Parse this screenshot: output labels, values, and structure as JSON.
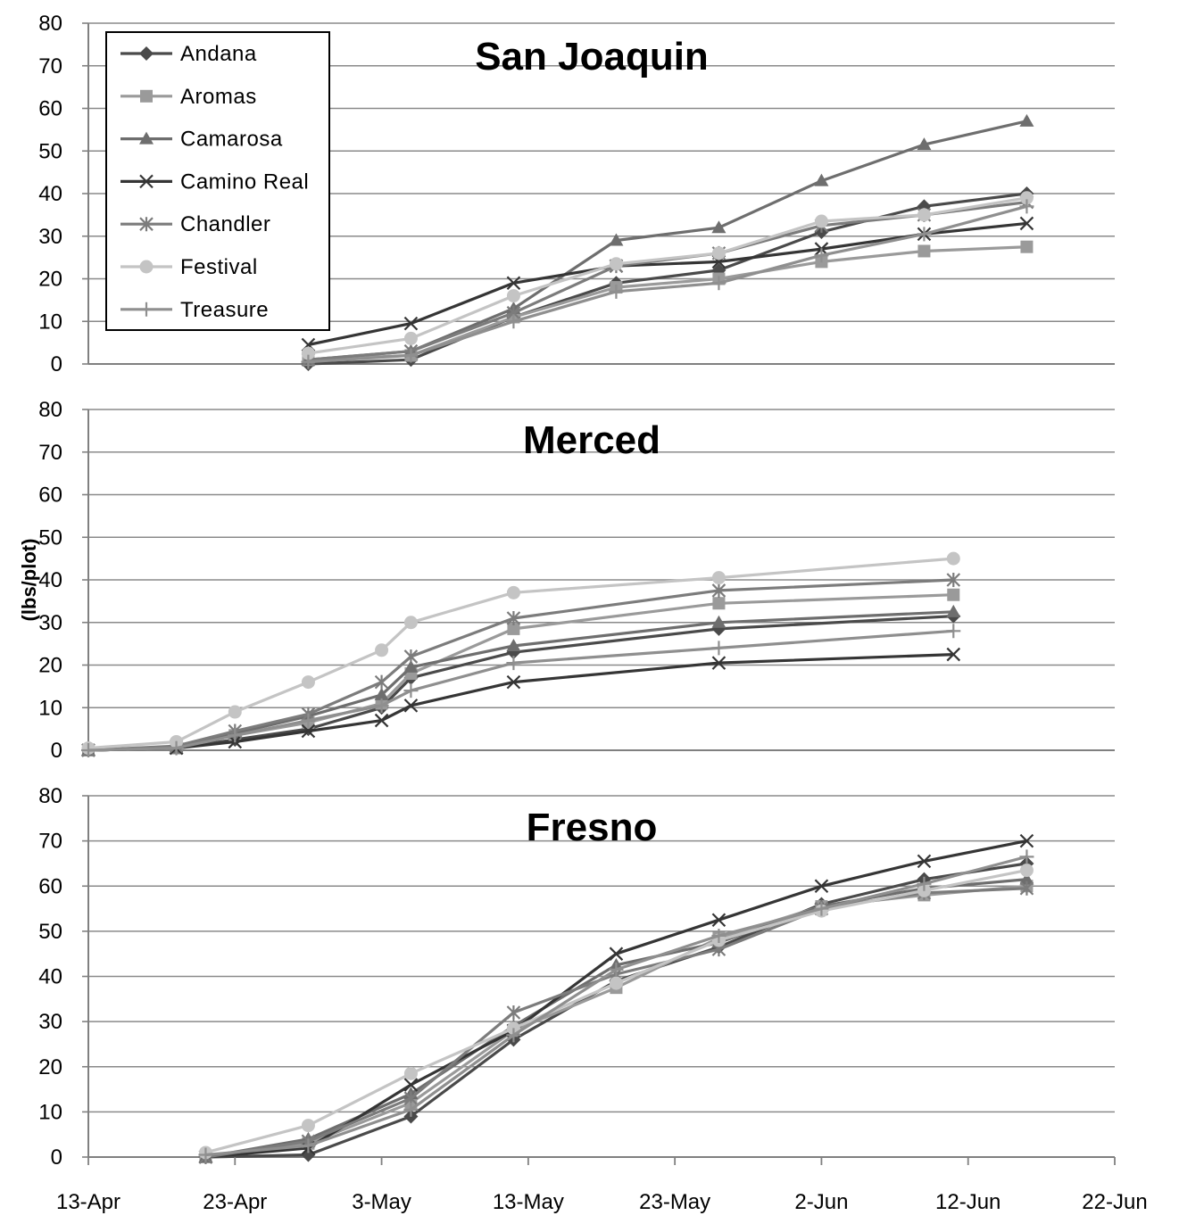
{
  "colors": {
    "Andana": "#4a4a4a",
    "Aromas": "#9a9a9a",
    "Camarosa": "#6e6e6e",
    "Camino Real": "#353535",
    "Chandler": "#7c7c7c",
    "Festival": "#c4c4c4",
    "Treasure": "#8f8f8f",
    "grid": "#8a8a8a",
    "axis": "#808080"
  },
  "chart_data": {
    "type": "line",
    "ylabel": "(lbs/plot)",
    "ylim": [
      0,
      80
    ],
    "yticks": [
      0,
      10,
      20,
      30,
      40,
      50,
      60,
      70,
      80
    ],
    "xlim": [
      "2012-04-13",
      "2012-06-22"
    ],
    "xticks": [
      "2012-04-13",
      "2012-04-23",
      "2012-05-03",
      "2012-05-13",
      "2012-05-23",
      "2012-06-02",
      "2012-06-12",
      "2012-06-22"
    ],
    "xtick_labels": [
      "13-Apr",
      "23-Apr",
      "3-May",
      "13-May",
      "23-May",
      "2-Jun",
      "12-Jun",
      "22-Jun"
    ],
    "legend": {
      "position": "top-left",
      "entries": [
        {
          "name": "Andana",
          "marker": "diamond"
        },
        {
          "name": "Aromas",
          "marker": "square"
        },
        {
          "name": "Camarosa",
          "marker": "triangle"
        },
        {
          "name": "Camino Real",
          "marker": "x"
        },
        {
          "name": "Chandler",
          "marker": "star"
        },
        {
          "name": "Festival",
          "marker": "circle"
        },
        {
          "name": "Treasure",
          "marker": "plus"
        }
      ]
    },
    "panels": [
      {
        "title": "San Joaquin",
        "x": [
          "2012-04-28",
          "2012-05-05",
          "2012-05-12",
          "2012-05-19",
          "2012-05-26",
          "2012-06-02",
          "2012-06-09",
          "2012-06-16"
        ],
        "series": [
          {
            "name": "Andana",
            "values": [
              0,
              1,
              11,
              19,
              22,
              31,
              37,
              40
            ]
          },
          {
            "name": "Aromas",
            "values": [
              1,
              2,
              11,
              18,
              20,
              24,
              26.5,
              27.5
            ]
          },
          {
            "name": "Camarosa",
            "values": [
              1,
              3,
              13,
              29,
              32,
              43,
              51.5,
              57
            ]
          },
          {
            "name": "Camino Real",
            "values": [
              4.5,
              9.5,
              19,
              23,
              24,
              27,
              30.5,
              33
            ]
          },
          {
            "name": "Chandler",
            "values": [
              1,
              3,
              12,
              23,
              26,
              32.5,
              35,
              38
            ]
          },
          {
            "name": "Festival",
            "values": [
              2.5,
              6,
              16,
              23.5,
              26,
              33.5,
              35,
              39
            ]
          },
          {
            "name": "Treasure",
            "values": [
              0.5,
              2,
              10,
              17,
              19,
              25.5,
              30.5,
              37
            ]
          }
        ]
      },
      {
        "title": "Merced",
        "x": [
          "2012-04-13",
          "2012-04-19",
          "2012-04-23",
          "2012-04-28",
          "2012-05-03",
          "2012-05-05",
          "2012-05-12",
          "2012-05-26",
          "2012-06-11"
        ],
        "series": [
          {
            "name": "Andana",
            "values": [
              0,
              0.5,
              2.5,
              5,
              10,
              17,
              23,
              28.5,
              31.5
            ]
          },
          {
            "name": "Aromas",
            "values": [
              0,
              0.5,
              3.5,
              6.5,
              11,
              18,
              28.5,
              34.5,
              36.5
            ]
          },
          {
            "name": "Camarosa",
            "values": [
              0,
              0.5,
              4,
              8,
              13,
              19.5,
              24.5,
              30,
              32.5
            ]
          },
          {
            "name": "Camino Real",
            "values": [
              0,
              0.5,
              2,
              4.5,
              7,
              10.5,
              16,
              20.5,
              22.5
            ]
          },
          {
            "name": "Chandler",
            "values": [
              0,
              1,
              4.5,
              8.5,
              16,
              22,
              31,
              37.5,
              40
            ]
          },
          {
            "name": "Festival",
            "values": [
              0.5,
              2,
              9,
              16,
              23.5,
              30,
              37,
              40.5,
              45
            ]
          },
          {
            "name": "Treasure",
            "values": [
              0,
              0.5,
              3.5,
              7,
              10.5,
              14,
              20.5,
              24,
              28
            ]
          }
        ]
      },
      {
        "title": "Fresno",
        "x": [
          "2012-04-21",
          "2012-04-28",
          "2012-05-05",
          "2012-05-12",
          "2012-05-19",
          "2012-05-26",
          "2012-06-02",
          "2012-06-09",
          "2012-06-16"
        ],
        "series": [
          {
            "name": "Andana",
            "values": [
              0,
              0.5,
              9,
              26,
              39,
              46.5,
              56,
              61.5,
              65
            ]
          },
          {
            "name": "Aromas",
            "values": [
              0,
              3,
              12,
              28,
              37.5,
              48.5,
              55.5,
              58,
              60
            ]
          },
          {
            "name": "Camarosa",
            "values": [
              0,
              4,
              14,
              29,
              42.5,
              47.5,
              55.5,
              59.5,
              61.5
            ]
          },
          {
            "name": "Camino Real",
            "values": [
              0,
              2,
              16,
              28,
              45,
              52.5,
              60,
              65.5,
              70
            ]
          },
          {
            "name": "Chandler",
            "values": [
              0,
              3.5,
              13,
              32,
              40.5,
              46,
              55,
              58.5,
              59.5
            ]
          },
          {
            "name": "Festival",
            "values": [
              1,
              7,
              18.5,
              28.5,
              38.5,
              48,
              54.5,
              59,
              63.5
            ]
          },
          {
            "name": "Treasure",
            "values": [
              0.5,
              2.5,
              10.5,
              27,
              41.5,
              49,
              55,
              60.5,
              66.5
            ]
          }
        ]
      }
    ]
  }
}
